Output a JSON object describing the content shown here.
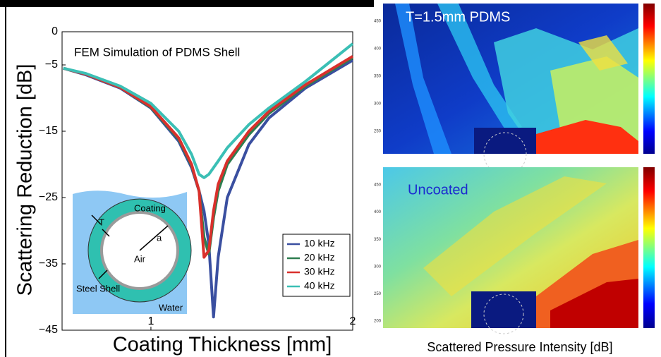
{
  "chart_data": {
    "type": "line",
    "annotation": "FEM Simulation of PDMS Shell",
    "xlabel": "Coating Thickness [mm]",
    "ylabel": "Scattering Reduction [dB]",
    "xscale": "log",
    "x": [
      0.74,
      0.8,
      0.9,
      1.0,
      1.1,
      1.15,
      1.18,
      1.2,
      1.22,
      1.24,
      1.26,
      1.3,
      1.4,
      1.5,
      1.7,
      2.0
    ],
    "series": [
      {
        "name": "10 kHz",
        "color": "#3a4fa0",
        "values": [
          -5.5,
          -6.5,
          -8.5,
          -11.5,
          -16.5,
          -20.5,
          -24,
          -27,
          -32,
          -43,
          -34,
          -25,
          -17,
          -13,
          -8.5,
          -4.3
        ]
      },
      {
        "name": "20 kHz",
        "color": "#2e7d4f",
        "values": [
          -5.5,
          -6.4,
          -8.4,
          -11.4,
          -16.2,
          -20.2,
          -24,
          -31,
          -33.5,
          -28,
          -24,
          -20,
          -15.5,
          -12.3,
          -8.2,
          -3.9
        ]
      },
      {
        "name": "30 kHz",
        "color": "#d9302c",
        "values": [
          -5.5,
          -6.4,
          -8.4,
          -11.3,
          -16,
          -20,
          -24,
          -34,
          -33,
          -27,
          -23,
          -19.5,
          -15,
          -12,
          -8,
          -3.7
        ]
      },
      {
        "name": "40 kHz",
        "color": "#3bbfb5",
        "values": [
          -5.5,
          -6.3,
          -8.2,
          -10.8,
          -15,
          -18.5,
          -21.5,
          -22,
          -21.5,
          -20.5,
          -19.5,
          -17.5,
          -14,
          -11.5,
          -7.5,
          -1.8
        ]
      }
    ],
    "xlim": [
      0.737,
      2
    ],
    "xticks": [
      1,
      2
    ],
    "ylim": [
      -45,
      0
    ],
    "yticks": [
      0,
      {
        "value": -5,
        "label": "−5"
      },
      {
        "value": -15,
        "label": "−15"
      },
      {
        "value": -25,
        "label": "−25"
      },
      {
        "value": -35,
        "label": "−35"
      },
      {
        "value": -45,
        "label": "−45"
      }
    ],
    "legend": "lower right",
    "inset": {
      "coating": "Coating",
      "thickness": "T",
      "radius": "a",
      "air": "Air",
      "shell": "Steel Shell",
      "water": "Water"
    }
  },
  "heatmaps": [
    {
      "label": "T=1.5mm PDMS",
      "yticks": [
        "450",
        "400",
        "350",
        "300",
        "250"
      ]
    },
    {
      "label": "Uncoated",
      "yticks": [
        "450",
        "400",
        "350",
        "300",
        "250",
        "200"
      ]
    }
  ],
  "heatmap_caption": "Scattered Pressure Intensity [dB]"
}
